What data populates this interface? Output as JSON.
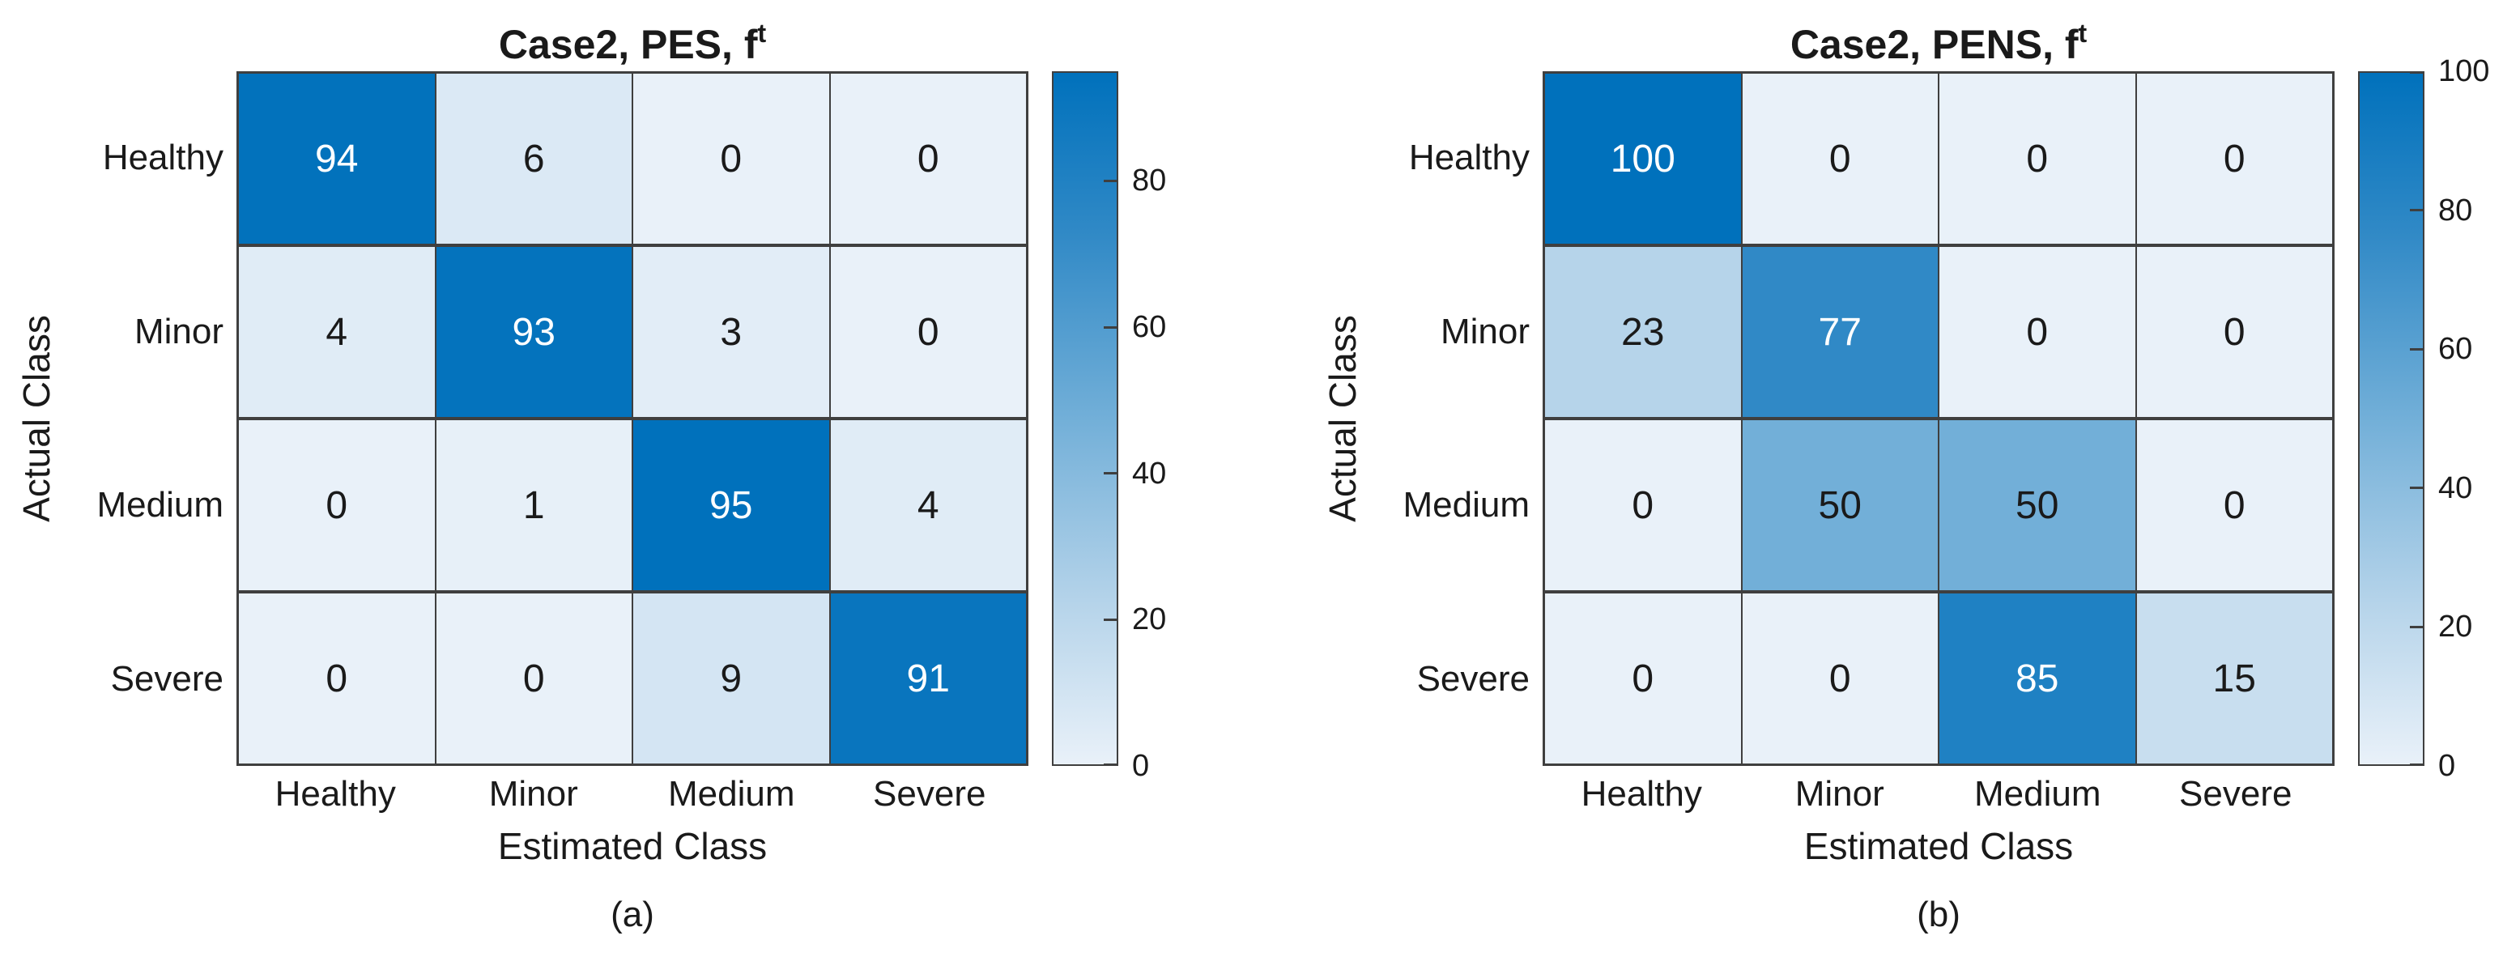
{
  "figure": {
    "background": "#ffffff"
  },
  "chart_data": [
    {
      "type": "heatmap",
      "subtype": "confusion_matrix",
      "title": "Case2, PES, f^t",
      "title_main": "Case2, PES, f",
      "title_superscript": "t",
      "caption": "(a)",
      "xlabel": "Estimated Class",
      "ylabel": "Actual Class",
      "x_categories": [
        "Healthy",
        "Minor",
        "Medium",
        "Severe"
      ],
      "y_categories": [
        "Healthy",
        "Minor",
        "Medium",
        "Severe"
      ],
      "values": [
        [
          94,
          6,
          0,
          0
        ],
        [
          4,
          93,
          3,
          0
        ],
        [
          0,
          1,
          95,
          4
        ],
        [
          0,
          0,
          9,
          91
        ]
      ],
      "color_scale_max": 95,
      "colorbar_ticks": [
        0,
        20,
        40,
        60,
        80
      ],
      "colorbar_position": "right",
      "grid": "on"
    },
    {
      "type": "heatmap",
      "subtype": "confusion_matrix",
      "title": "Case2, PENS, f^t",
      "title_main": "Case2, PENS, f",
      "title_superscript": "t",
      "caption": "(b)",
      "xlabel": "Estimated Class",
      "ylabel": "Actual Class",
      "x_categories": [
        "Healthy",
        "Minor",
        "Medium",
        "Severe"
      ],
      "y_categories": [
        "Healthy",
        "Minor",
        "Medium",
        "Severe"
      ],
      "values": [
        [
          100,
          0,
          0,
          0
        ],
        [
          23,
          77,
          0,
          0
        ],
        [
          0,
          50,
          50,
          0
        ],
        [
          0,
          0,
          85,
          15
        ]
      ],
      "color_scale_max": 100,
      "colorbar_ticks": [
        0,
        20,
        40,
        60,
        80,
        100
      ],
      "colorbar_position": "right",
      "grid": "on"
    }
  ],
  "colors": {
    "colormap_stops": [
      {
        "v": 0,
        "hex": "#E9F1F9"
      },
      {
        "v": 23,
        "hex": "#B6D4EA"
      },
      {
        "v": 50,
        "hex": "#72AFD8"
      },
      {
        "v": 77,
        "hex": "#3089C6"
      },
      {
        "v": 100,
        "hex": "#0071BC"
      }
    ],
    "grid_line": "#3f3f3f",
    "text_dark": "#1a1a1a",
    "text_light": "#ffffff"
  }
}
